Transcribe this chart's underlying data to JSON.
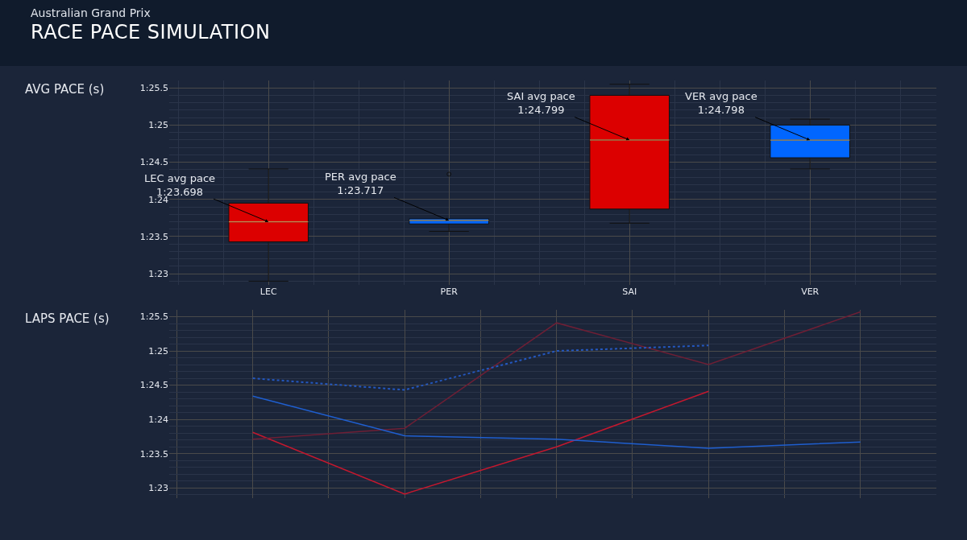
{
  "chart_data": [
    {
      "type": "box",
      "title": "RACE PACE SIMULATION",
      "subtitle": "Australian Grand Prix",
      "ylabel": "AVG PACE (s)",
      "categories": [
        "LEC",
        "PER",
        "SAI",
        "VER"
      ],
      "boxes": [
        {
          "low": 82.9,
          "q1": 83.43,
          "median": 83.698,
          "q3": 83.95,
          "high": 84.41
        },
        {
          "low": 83.57,
          "q1": 83.67,
          "median": 83.717,
          "q3": 83.74,
          "high": 83.74,
          "outliers": [
            84.34
          ]
        },
        {
          "low": 83.68,
          "q1": 83.87,
          "median": 84.799,
          "q3": 85.4,
          "high": 85.55
        },
        {
          "low": 84.41,
          "q1": 84.56,
          "median": 84.798,
          "q3": 85.0,
          "high": 85.08
        }
      ],
      "colors": [
        "#dc0000",
        "#0066ff",
        "#dc0000",
        "#0066ff"
      ],
      "ylim": [
        82.85,
        85.6
      ],
      "yticks": [
        {
          "value": 83,
          "label": "1:23"
        },
        {
          "value": 83.5,
          "label": "1:23.5"
        },
        {
          "value": 84,
          "label": "1:24"
        },
        {
          "value": 84.5,
          "label": "1:24.5"
        },
        {
          "value": 85,
          "label": "1:25"
        },
        {
          "value": 85.5,
          "label": "1:25.5"
        }
      ],
      "grid": true,
      "annotations": [
        {
          "text": "LEC avg pace\n1:23.698",
          "x": "LEC",
          "y": 83.698
        },
        {
          "text": "PER avg pace\n1:23.717",
          "x": "PER",
          "y": 83.717
        },
        {
          "text": "SAI avg pace\n1:24.799",
          "x": "SAI",
          "y": 84.799
        },
        {
          "text": "VER avg pace\n1:24.798",
          "x": "VER",
          "y": 84.798
        }
      ]
    },
    {
      "type": "line",
      "ylabel": "LAPS PACE (s)",
      "categories": [
        null,
        null,
        null,
        null,
        null
      ],
      "series": [
        {
          "color": "#c4182e",
          "values": [
            83.81,
            82.91,
            83.6,
            84.41,
            null
          ]
        },
        {
          "color": "#6e1f35",
          "values": [
            83.71,
            83.87,
            85.41,
            84.8,
            85.57
          ]
        },
        {
          "color": "#1f5fd0",
          "values": [
            84.34,
            83.76,
            83.71,
            83.58,
            83.67
          ]
        },
        {
          "color": "#2458c0",
          "values": [
            84.6,
            84.43,
            85.0,
            85.08,
            null
          ],
          "line_style": "dotted"
        }
      ],
      "ylim": [
        82.85,
        85.6
      ],
      "yticks": [
        {
          "value": 83,
          "label": "1:23"
        },
        {
          "value": 83.5,
          "label": "1:23.5"
        },
        {
          "value": 84,
          "label": "1:24"
        },
        {
          "value": 84.5,
          "label": "1:24.5"
        },
        {
          "value": 85,
          "label": "1:25"
        },
        {
          "value": 85.5,
          "label": "1:25.5"
        }
      ],
      "grid": true,
      "tick_labels": "y"
    }
  ]
}
